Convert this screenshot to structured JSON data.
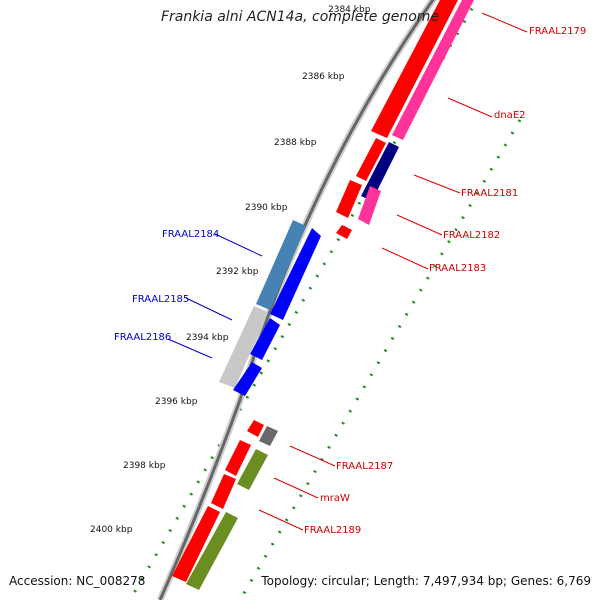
{
  "title": "Frankia alni ACN14a, complete genome",
  "footer": {
    "accession": "Accession: NC_008278",
    "summary": "Topology: circular; Length: 7,497,934 bp; Genes: 6,769"
  },
  "colors": {
    "forward_cds": "#ff0000",
    "forward_pink": "#ff3399",
    "reverse_cds": "#0000ff",
    "reverse_steel": "#4682b4",
    "navy": "#000080",
    "olive": "#6b8e23",
    "gray": "#808080",
    "tick_green": "#228b22",
    "label_red": "#cc0000",
    "label_blue": "#0000cc"
  },
  "kbp_ticks": [
    "2384 kbp",
    "2386 kbp",
    "2388 kbp",
    "2390 kbp",
    "2392 kbp",
    "2394 kbp",
    "2396 kbp",
    "2398 kbp",
    "2400 kbp"
  ],
  "gene_labels": {
    "right": [
      "FRAAL2179",
      "dnaE2",
      "FRAAL2181",
      "FRAAL2182",
      "FRAAL2183",
      "FRAAL2187",
      "mraW",
      "FRAAL2189"
    ],
    "left": [
      "FRAAL2184",
      "FRAAL2185",
      "FRAAL2186"
    ]
  }
}
